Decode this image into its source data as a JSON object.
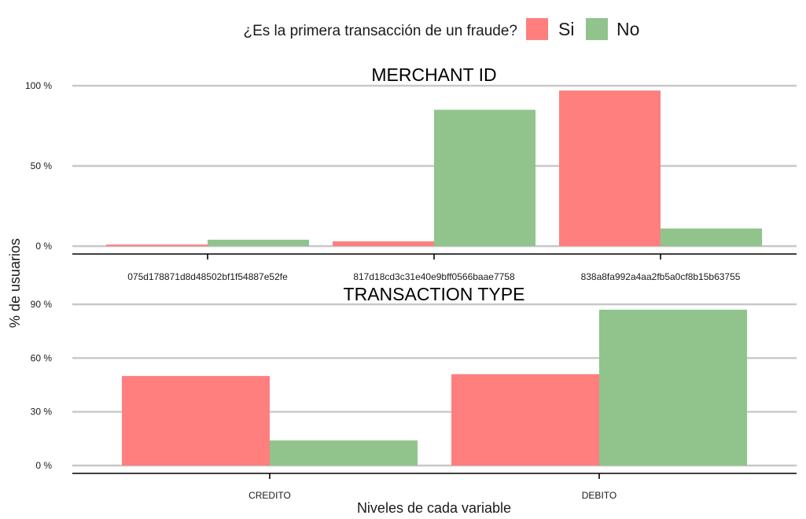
{
  "legend": {
    "title": "¿Es la primera transacción de un fraude?",
    "items": [
      {
        "label": "Si",
        "color": "#ff7f7f"
      },
      {
        "label": "No",
        "color": "#90c48c"
      }
    ]
  },
  "axes": {
    "xlabel": "Niveles de cada variable",
    "ylabel": "% de usuarios"
  },
  "chart_data": [
    {
      "type": "bar",
      "title": "MERCHANT ID",
      "categories": [
        "075d178871d8d48502bf1f54887e52fe",
        "817d18cd3c31e40e9bff0566baae7758",
        "838a8fa992a4aa2fb5a0cf8b15b63755"
      ],
      "series": [
        {
          "name": "Si",
          "values": [
            1,
            3,
            97
          ]
        },
        {
          "name": "No",
          "values": [
            4,
            85,
            11
          ]
        }
      ],
      "ylim": [
        0,
        100
      ],
      "yticks": [
        0,
        50,
        100
      ],
      "ytick_labels": [
        "0 %",
        "50 %",
        "100 %"
      ],
      "grid": true
    },
    {
      "type": "bar",
      "title": "TRANSACTION TYPE",
      "categories": [
        "CREDITO",
        "DEBITO"
      ],
      "series": [
        {
          "name": "Si",
          "values": [
            50,
            51
          ]
        },
        {
          "name": "No",
          "values": [
            14,
            87
          ]
        }
      ],
      "ylim": [
        0,
        90
      ],
      "yticks": [
        0,
        30,
        60,
        90
      ],
      "ytick_labels": [
        "0 %",
        "30 %",
        "60 %",
        "90 %"
      ],
      "grid": true
    }
  ]
}
